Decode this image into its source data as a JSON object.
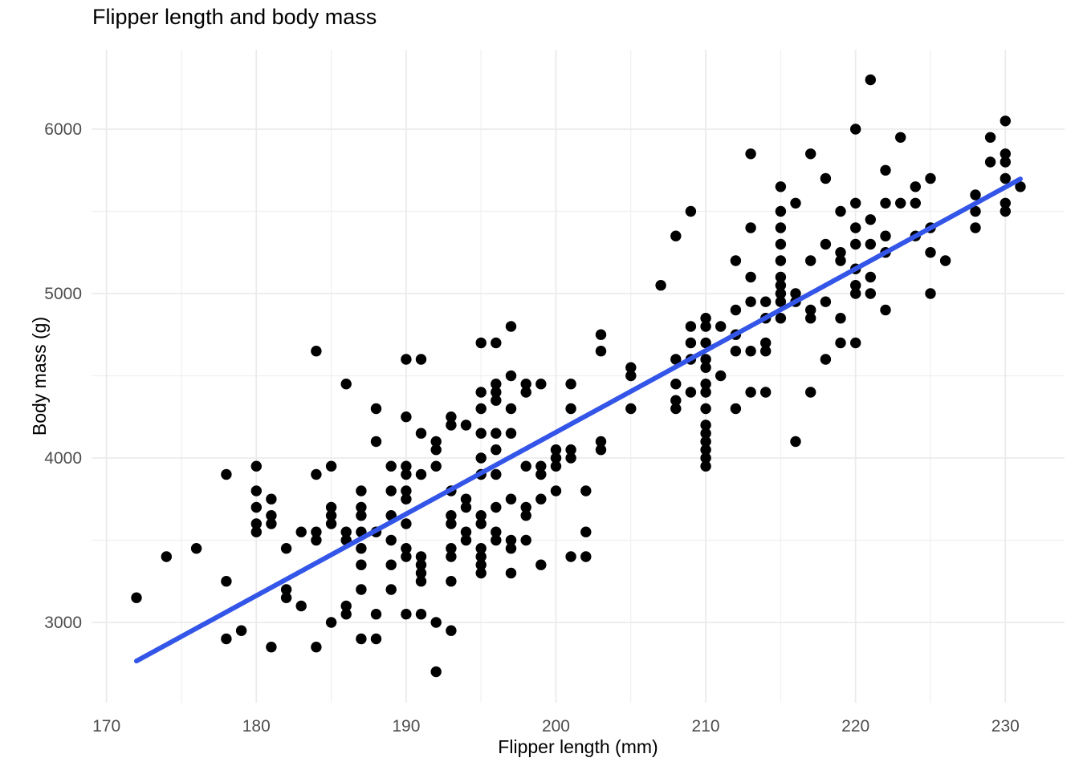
{
  "title": "Flipper length and body mass",
  "x_axis": {
    "label": "Flipper length (mm)"
  },
  "y_axis": {
    "label": "Body mass (g)"
  },
  "colors": {
    "background": "#ffffff",
    "grid_major": "#EBEBEB",
    "grid_minor": "#F0F0F0",
    "tick_label": "#4D4D4D",
    "axis_title": "#000000",
    "title": "#000000",
    "point": "#000000",
    "trend": "#3355E8"
  },
  "chart_data": {
    "type": "scatter",
    "title": "Flipper length and body mass",
    "xlabel": "Flipper length (mm)",
    "ylabel": "Body mass (g)",
    "xlim": [
      169.0,
      233.95
    ],
    "ylim": [
      2512,
      6483
    ],
    "grid": "on",
    "legend": "none",
    "x_major_ticks": [
      170,
      180,
      190,
      200,
      210,
      220,
      230
    ],
    "x_minor_ticks": [
      175,
      185,
      195,
      205,
      215,
      225
    ],
    "y_major_ticks": [
      3000,
      4000,
      5000,
      6000
    ],
    "y_minor_ticks": [
      3500,
      4500,
      5500
    ],
    "trend_line": {
      "type": "linear-fit",
      "from": [
        172,
        2765
      ],
      "to": [
        231,
        5697
      ]
    },
    "point_radius": 6.7,
    "points": [
      [
        172,
        3150
      ],
      [
        174,
        3400
      ],
      [
        176,
        3450
      ],
      [
        178,
        3900
      ],
      [
        178,
        3250
      ],
      [
        178,
        2900
      ],
      [
        179,
        2950
      ],
      [
        180,
        3950
      ],
      [
        180,
        3800
      ],
      [
        180,
        3700
      ],
      [
        180,
        3600
      ],
      [
        180,
        3550
      ],
      [
        181,
        3750
      ],
      [
        181,
        3650
      ],
      [
        181,
        3600
      ],
      [
        181,
        2850
      ],
      [
        182,
        3450
      ],
      [
        182,
        3200
      ],
      [
        182,
        3150
      ],
      [
        183,
        3550
      ],
      [
        183,
        3100
      ],
      [
        184,
        4650
      ],
      [
        184,
        3900
      ],
      [
        184,
        3550
      ],
      [
        184,
        3500
      ],
      [
        184,
        2850
      ],
      [
        185,
        3950
      ],
      [
        185,
        3700
      ],
      [
        185,
        3650
      ],
      [
        185,
        3600
      ],
      [
        185,
        3000
      ],
      [
        186,
        4450
      ],
      [
        186,
        3550
      ],
      [
        186,
        3500
      ],
      [
        186,
        3100
      ],
      [
        186,
        3050
      ],
      [
        187,
        3800
      ],
      [
        187,
        3700
      ],
      [
        187,
        3650
      ],
      [
        187,
        3550
      ],
      [
        187,
        3450
      ],
      [
        187,
        3350
      ],
      [
        187,
        3200
      ],
      [
        187,
        2900
      ],
      [
        188,
        4300
      ],
      [
        188,
        4100
      ],
      [
        188,
        3550
      ],
      [
        188,
        3050
      ],
      [
        188,
        2900
      ],
      [
        189,
        3950
      ],
      [
        189,
        3800
      ],
      [
        189,
        3650
      ],
      [
        189,
        3500
      ],
      [
        189,
        3350
      ],
      [
        189,
        3200
      ],
      [
        190,
        4600
      ],
      [
        190,
        4250
      ],
      [
        190,
        3950
      ],
      [
        190,
        3900
      ],
      [
        190,
        3800
      ],
      [
        190,
        3750
      ],
      [
        190,
        3600
      ],
      [
        190,
        3450
      ],
      [
        190,
        3400
      ],
      [
        190,
        3050
      ],
      [
        191,
        4600
      ],
      [
        191,
        4150
      ],
      [
        191,
        3900
      ],
      [
        191,
        3400
      ],
      [
        191,
        3350
      ],
      [
        191,
        3300
      ],
      [
        191,
        3250
      ],
      [
        191,
        3050
      ],
      [
        192,
        4100
      ],
      [
        192,
        4050
      ],
      [
        192,
        3950
      ],
      [
        192,
        3000
      ],
      [
        192,
        2700
      ],
      [
        193,
        4250
      ],
      [
        193,
        4200
      ],
      [
        193,
        3800
      ],
      [
        193,
        3650
      ],
      [
        193,
        3600
      ],
      [
        193,
        3450
      ],
      [
        193,
        3400
      ],
      [
        193,
        3250
      ],
      [
        193,
        2950
      ],
      [
        194,
        4200
      ],
      [
        194,
        3750
      ],
      [
        194,
        3700
      ],
      [
        194,
        3550
      ],
      [
        194,
        3500
      ],
      [
        195,
        4700
      ],
      [
        195,
        4400
      ],
      [
        195,
        4300
      ],
      [
        195,
        4150
      ],
      [
        195,
        4000
      ],
      [
        195,
        3900
      ],
      [
        195,
        3650
      ],
      [
        195,
        3600
      ],
      [
        195,
        3450
      ],
      [
        195,
        3400
      ],
      [
        195,
        3350
      ],
      [
        195,
        3300
      ],
      [
        196,
        4700
      ],
      [
        196,
        4450
      ],
      [
        196,
        4400
      ],
      [
        196,
        4350
      ],
      [
        196,
        4150
      ],
      [
        196,
        4050
      ],
      [
        196,
        3900
      ],
      [
        196,
        3700
      ],
      [
        196,
        3550
      ],
      [
        196,
        3500
      ],
      [
        197,
        4800
      ],
      [
        197,
        4500
      ],
      [
        197,
        4300
      ],
      [
        197,
        4150
      ],
      [
        197,
        3750
      ],
      [
        197,
        3500
      ],
      [
        197,
        3450
      ],
      [
        197,
        3300
      ],
      [
        198,
        4450
      ],
      [
        198,
        4400
      ],
      [
        198,
        3950
      ],
      [
        198,
        3700
      ],
      [
        198,
        3650
      ],
      [
        198,
        3500
      ],
      [
        199,
        4450
      ],
      [
        199,
        3950
      ],
      [
        199,
        3900
      ],
      [
        199,
        3750
      ],
      [
        199,
        3350
      ],
      [
        200,
        4050
      ],
      [
        200,
        4000
      ],
      [
        200,
        3950
      ],
      [
        200,
        3800
      ],
      [
        201,
        4450
      ],
      [
        201,
        4300
      ],
      [
        201,
        4050
      ],
      [
        201,
        4000
      ],
      [
        201,
        3400
      ],
      [
        202,
        3800
      ],
      [
        202,
        3550
      ],
      [
        202,
        3400
      ],
      [
        203,
        4750
      ],
      [
        203,
        4650
      ],
      [
        203,
        4100
      ],
      [
        203,
        4050
      ],
      [
        205,
        4550
      ],
      [
        205,
        4500
      ],
      [
        205,
        4300
      ],
      [
        207,
        5050
      ],
      [
        208,
        5350
      ],
      [
        208,
        4600
      ],
      [
        208,
        4450
      ],
      [
        208,
        4350
      ],
      [
        208,
        4300
      ],
      [
        209,
        5500
      ],
      [
        209,
        4800
      ],
      [
        209,
        4700
      ],
      [
        209,
        4600
      ],
      [
        209,
        4400
      ],
      [
        210,
        4850
      ],
      [
        210,
        4800
      ],
      [
        210,
        4700
      ],
      [
        210,
        4600
      ],
      [
        210,
        4550
      ],
      [
        210,
        4450
      ],
      [
        210,
        4400
      ],
      [
        210,
        4300
      ],
      [
        210,
        4200
      ],
      [
        210,
        4150
      ],
      [
        210,
        4100
      ],
      [
        210,
        4050
      ],
      [
        210,
        4000
      ],
      [
        210,
        3950
      ],
      [
        211,
        4800
      ],
      [
        211,
        4500
      ],
      [
        212,
        5200
      ],
      [
        212,
        4900
      ],
      [
        212,
        4750
      ],
      [
        212,
        4650
      ],
      [
        212,
        4300
      ],
      [
        213,
        5850
      ],
      [
        213,
        5400
      ],
      [
        213,
        5100
      ],
      [
        213,
        4950
      ],
      [
        213,
        4650
      ],
      [
        213,
        4400
      ],
      [
        214,
        4950
      ],
      [
        214,
        4850
      ],
      [
        214,
        4700
      ],
      [
        214,
        4650
      ],
      [
        214,
        4400
      ],
      [
        215,
        5650
      ],
      [
        215,
        5500
      ],
      [
        215,
        5400
      ],
      [
        215,
        5300
      ],
      [
        215,
        5200
      ],
      [
        215,
        5100
      ],
      [
        215,
        5050
      ],
      [
        215,
        5000
      ],
      [
        215,
        4950
      ],
      [
        215,
        4850
      ],
      [
        216,
        5550
      ],
      [
        216,
        5000
      ],
      [
        216,
        4950
      ],
      [
        216,
        4100
      ],
      [
        217,
        5850
      ],
      [
        217,
        5200
      ],
      [
        217,
        4900
      ],
      [
        217,
        4850
      ],
      [
        217,
        4400
      ],
      [
        218,
        5700
      ],
      [
        218,
        5300
      ],
      [
        218,
        4950
      ],
      [
        218,
        4600
      ],
      [
        219,
        5500
      ],
      [
        219,
        5250
      ],
      [
        219,
        5200
      ],
      [
        219,
        4850
      ],
      [
        219,
        4700
      ],
      [
        220,
        6000
      ],
      [
        220,
        5550
      ],
      [
        220,
        5400
      ],
      [
        220,
        5300
      ],
      [
        220,
        5150
      ],
      [
        220,
        5050
      ],
      [
        220,
        5000
      ],
      [
        220,
        4700
      ],
      [
        221,
        6300
      ],
      [
        221,
        5450
      ],
      [
        221,
        5300
      ],
      [
        221,
        5100
      ],
      [
        221,
        5000
      ],
      [
        222,
        5750
      ],
      [
        222,
        5550
      ],
      [
        222,
        5350
      ],
      [
        222,
        5250
      ],
      [
        222,
        4900
      ],
      [
        223,
        5950
      ],
      [
        223,
        5550
      ],
      [
        224,
        5650
      ],
      [
        224,
        5550
      ],
      [
        224,
        5350
      ],
      [
        225,
        5700
      ],
      [
        225,
        5400
      ],
      [
        225,
        5250
      ],
      [
        225,
        5000
      ],
      [
        226,
        5200
      ],
      [
        228,
        5600
      ],
      [
        228,
        5500
      ],
      [
        228,
        5400
      ],
      [
        229,
        5950
      ],
      [
        229,
        5800
      ],
      [
        230,
        6050
      ],
      [
        230,
        5850
      ],
      [
        230,
        5800
      ],
      [
        230,
        5700
      ],
      [
        230,
        5550
      ],
      [
        230,
        5500
      ],
      [
        231,
        5650
      ]
    ]
  }
}
